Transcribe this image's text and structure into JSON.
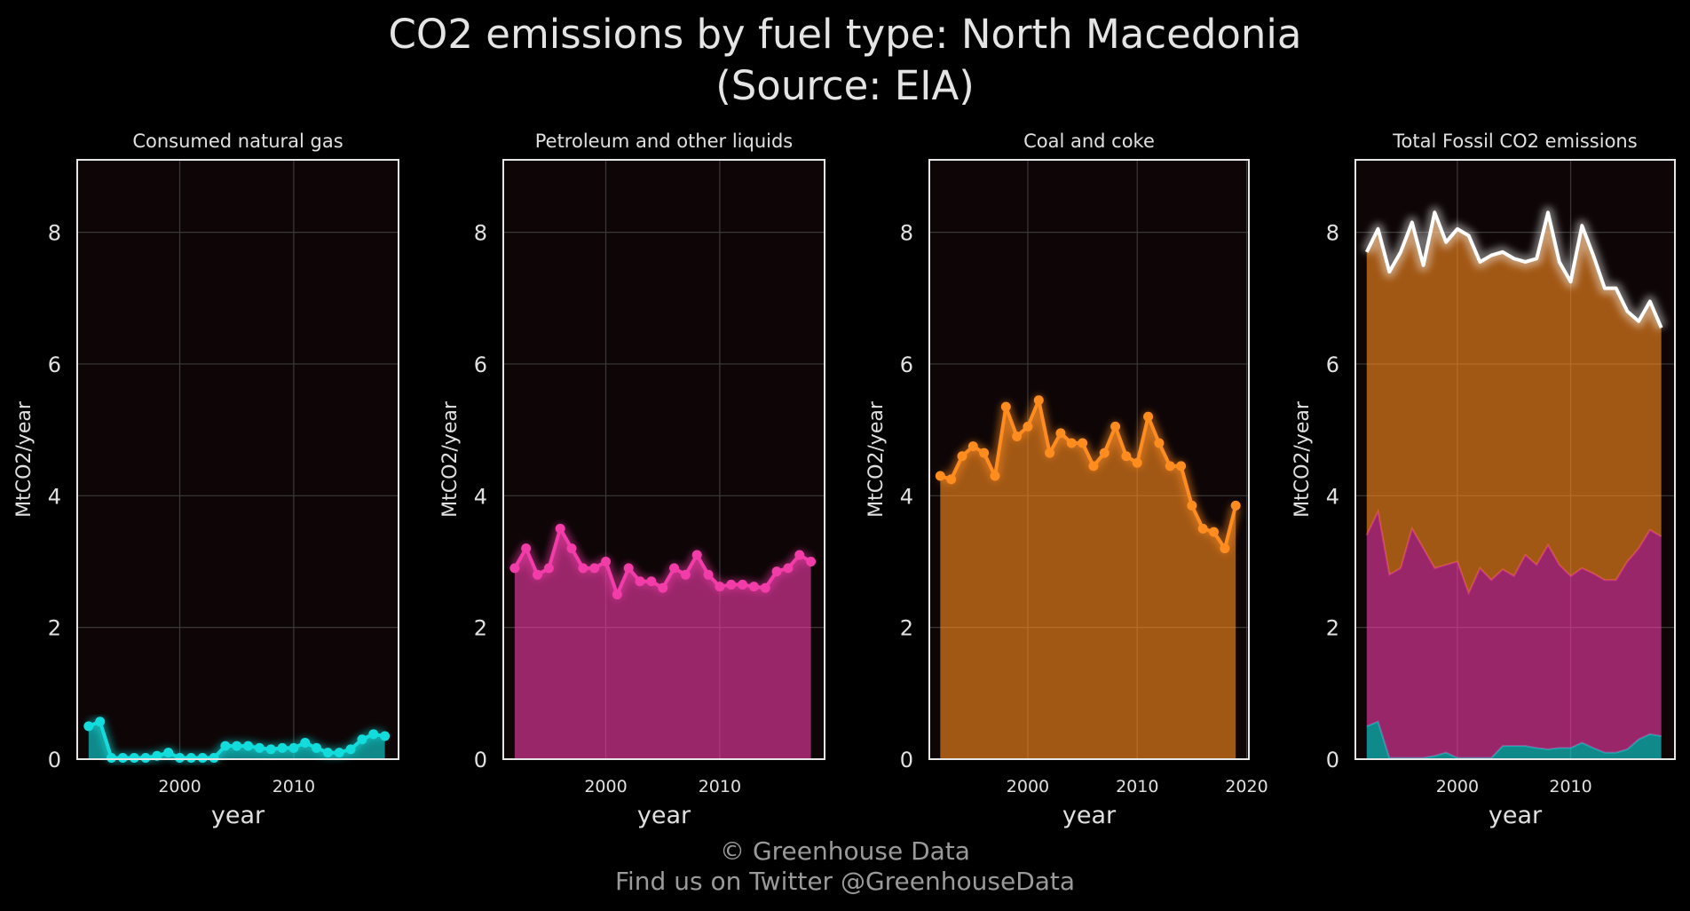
{
  "title_line1": "CO2 emissions by fuel type: North Macedonia",
  "title_line2": "(Source: EIA)",
  "footer_line1": "© Greenhouse Data",
  "footer_line2": "Find us on Twitter @GreenhouseData",
  "colors": {
    "background": "#000000",
    "panel": "#0d0506",
    "grid": "#3a3a3a",
    "frame": "#e6e6e6",
    "text": "#e0e0e0",
    "gas": "#12dcdc",
    "petroleum": "#f23ca8",
    "coal": "#ff8c1e",
    "total": "#ffffff"
  },
  "chart_data": [
    {
      "type": "area",
      "title": "Consumed natural gas",
      "xlabel": "year",
      "ylabel": "MtCO2/year",
      "ylim": [
        0,
        9.1
      ],
      "yticks": [
        0,
        2,
        4,
        6,
        8
      ],
      "xticks": [
        2000,
        2010
      ],
      "grid": true,
      "x": [
        1992,
        1993,
        1994,
        1995,
        1996,
        1997,
        1998,
        1999,
        2000,
        2001,
        2002,
        2003,
        2004,
        2005,
        2006,
        2007,
        2008,
        2009,
        2010,
        2011,
        2012,
        2013,
        2014,
        2015,
        2016,
        2017,
        2018
      ],
      "values": [
        0.5,
        0.57,
        0.02,
        0.02,
        0.02,
        0.02,
        0.05,
        0.1,
        0.02,
        0.02,
        0.02,
        0.02,
        0.2,
        0.2,
        0.2,
        0.17,
        0.15,
        0.17,
        0.17,
        0.25,
        0.17,
        0.1,
        0.1,
        0.15,
        0.3,
        0.38,
        0.35
      ],
      "color": "gas"
    },
    {
      "type": "area",
      "title": "Petroleum and other liquids",
      "xlabel": "year",
      "ylabel": "MtCO2/year",
      "ylim": [
        0,
        9.1
      ],
      "yticks": [
        0,
        2,
        4,
        6,
        8
      ],
      "xticks": [
        2000,
        2010
      ],
      "grid": true,
      "x": [
        1992,
        1993,
        1994,
        1995,
        1996,
        1997,
        1998,
        1999,
        2000,
        2001,
        2002,
        2003,
        2004,
        2005,
        2006,
        2007,
        2008,
        2009,
        2010,
        2011,
        2012,
        2013,
        2014,
        2015,
        2016,
        2017,
        2018
      ],
      "values": [
        2.9,
        3.2,
        2.8,
        2.9,
        3.5,
        3.2,
        2.9,
        2.9,
        3.0,
        2.5,
        2.9,
        2.7,
        2.7,
        2.6,
        2.9,
        2.8,
        3.1,
        2.8,
        2.62,
        2.65,
        2.65,
        2.62,
        2.6,
        2.85,
        2.9,
        3.1,
        3.0
      ],
      "color": "petroleum"
    },
    {
      "type": "area",
      "title": "Coal and coke",
      "xlabel": "year",
      "ylabel": "MtCO2/year",
      "ylim": [
        0,
        9.1
      ],
      "yticks": [
        0,
        2,
        4,
        6,
        8
      ],
      "xticks": [
        2000,
        2010,
        2020
      ],
      "grid": true,
      "x": [
        1992,
        1993,
        1994,
        1995,
        1996,
        1997,
        1998,
        1999,
        2000,
        2001,
        2002,
        2003,
        2004,
        2005,
        2006,
        2007,
        2008,
        2009,
        2010,
        2011,
        2012,
        2013,
        2014,
        2015,
        2016,
        2017,
        2018,
        2019
      ],
      "values": [
        4.3,
        4.25,
        4.6,
        4.75,
        4.65,
        4.3,
        5.35,
        4.9,
        5.05,
        5.45,
        4.65,
        4.95,
        4.8,
        4.8,
        4.45,
        4.65,
        5.05,
        4.6,
        4.5,
        5.2,
        4.8,
        4.45,
        4.45,
        3.85,
        3.5,
        3.45,
        3.2,
        3.85
      ],
      "color": "coal"
    },
    {
      "type": "area",
      "title": "Total Fossil CO2 emissions",
      "xlabel": "year",
      "ylabel": "MtCO2/year",
      "ylim": [
        0,
        9.1
      ],
      "yticks": [
        0,
        2,
        4,
        6,
        8
      ],
      "xticks": [
        2000,
        2010
      ],
      "grid": true,
      "stacked": true,
      "x": [
        1992,
        1993,
        1994,
        1995,
        1996,
        1997,
        1998,
        1999,
        2000,
        2001,
        2002,
        2003,
        2004,
        2005,
        2006,
        2007,
        2008,
        2009,
        2010,
        2011,
        2012,
        2013,
        2014,
        2015,
        2016,
        2017,
        2018
      ],
      "series": [
        {
          "values": [
            0.5,
            0.57,
            0.02,
            0.02,
            0.02,
            0.02,
            0.05,
            0.1,
            0.02,
            0.02,
            0.02,
            0.02,
            0.2,
            0.2,
            0.2,
            0.17,
            0.15,
            0.17,
            0.17,
            0.25,
            0.17,
            0.1,
            0.1,
            0.15,
            0.3,
            0.38,
            0.35
          ],
          "color": "gas"
        },
        {
          "values": [
            3.4,
            3.76,
            2.8,
            2.9,
            3.5,
            3.2,
            2.9,
            2.95,
            3.0,
            2.52,
            2.9,
            2.72,
            2.88,
            2.78,
            3.1,
            2.95,
            3.25,
            2.95,
            2.78,
            2.9,
            2.82,
            2.72,
            2.72,
            3.0,
            3.2,
            3.48,
            3.38
          ],
          "color": "petroleum"
        },
        {
          "values": [
            7.7,
            8.05,
            7.4,
            7.7,
            8.15,
            7.5,
            8.3,
            7.85,
            8.05,
            7.95,
            7.55,
            7.65,
            7.7,
            7.6,
            7.55,
            7.6,
            8.3,
            7.55,
            7.25,
            8.1,
            7.65,
            7.15,
            7.15,
            6.8,
            6.65,
            6.95,
            6.55
          ],
          "color": "coal",
          "line_color": "total"
        }
      ]
    }
  ]
}
